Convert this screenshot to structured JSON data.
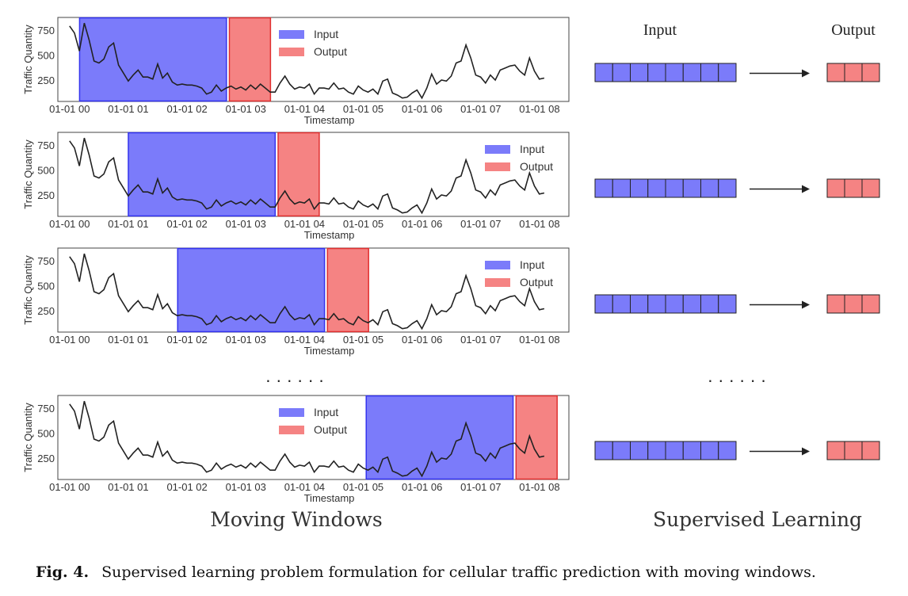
{
  "colors": {
    "input": "#7b7bfa",
    "input_edge": "#3333ee",
    "output": "#f58383",
    "output_edge": "#e03030",
    "line": "#222222",
    "frame": "#444444"
  },
  "right_panel": {
    "input_header": "Input",
    "output_header": "Output",
    "title": "Supervised Learning",
    "input_cells": 8,
    "output_cells": 3,
    "ellipsis": "· · · · · ·"
  },
  "left_panel": {
    "title": "Moving Windows",
    "ellipsis": "· · · · · ·"
  },
  "caption": {
    "label": "Fig. 4.",
    "text": "Supervised learning problem formulation for cellular traffic prediction with moving windows."
  },
  "chart_data": [
    {
      "type": "line",
      "xlabel": "Timestamp",
      "ylabel": "Traffic Quantity",
      "xticks": [
        "01-01 00",
        "01-01 01",
        "01-01 02",
        "01-01 03",
        "01-01 04",
        "01-01 05",
        "01-01 06",
        "01-01 07",
        "01-01 08"
      ],
      "yticks": [
        250,
        500,
        750
      ],
      "ylim": [
        60,
        860
      ],
      "x_range_hours": [
        -0.2,
        8.5
      ],
      "legend": [
        "Input",
        "Output"
      ],
      "legend_position": "top-center",
      "input_window_hours": [
        0.17,
        2.67
      ],
      "output_window_hours": [
        2.72,
        3.42
      ],
      "series": [
        {
          "x_step_hours": 0.0833,
          "values": [
            790,
            720,
            540,
            820,
            650,
            440,
            420,
            460,
            580,
            620,
            400,
            320,
            240,
            300,
            350,
            280,
            280,
            260,
            410,
            270,
            320,
            230,
            200,
            210,
            200,
            200,
            190,
            170,
            110,
            130,
            200,
            140,
            170,
            190,
            160,
            180,
            150,
            200,
            160,
            210,
            170,
            130,
            130,
            220,
            290,
            210,
            160,
            180,
            170,
            210,
            110,
            170,
            170,
            160,
            220,
            160,
            170,
            130,
            110,
            190,
            150,
            130,
            160,
            110,
            240,
            260,
            120,
            100,
            70,
            80,
            120,
            150,
            70,
            170,
            310,
            210,
            250,
            240,
            290,
            420,
            440,
            600,
            470,
            300,
            280,
            220,
            300,
            250,
            350,
            370,
            390,
            400,
            340,
            300,
            470,
            340,
            260,
            270
          ]
        }
      ]
    },
    {
      "type": "line",
      "xlabel": "Timestamp",
      "ylabel": "Traffic Quantity",
      "xticks": [
        "01-01 00",
        "01-01 01",
        "01-01 02",
        "01-01 03",
        "01-01 04",
        "01-01 05",
        "01-01 06",
        "01-01 07",
        "01-01 08"
      ],
      "yticks": [
        250,
        500,
        750
      ],
      "ylim": [
        60,
        860
      ],
      "x_range_hours": [
        -0.2,
        8.5
      ],
      "legend": [
        "Input",
        "Output"
      ],
      "legend_position": "top-right",
      "input_window_hours": [
        1.0,
        3.5
      ],
      "output_window_hours": [
        3.55,
        4.25
      ],
      "series": [
        {
          "x_step_hours": 0.0833,
          "same_as_panel": 0
        }
      ]
    },
    {
      "type": "line",
      "xlabel": "Timestamp",
      "ylabel": "Traffic Quantity",
      "xticks": [
        "01-01 00",
        "01-01 01",
        "01-01 02",
        "01-01 03",
        "01-01 04",
        "01-01 05",
        "01-01 06",
        "01-01 07",
        "01-01 08"
      ],
      "yticks": [
        250,
        500,
        750
      ],
      "ylim": [
        60,
        860
      ],
      "x_range_hours": [
        -0.2,
        8.5
      ],
      "legend": [
        "Input",
        "Output"
      ],
      "legend_position": "top-right",
      "input_window_hours": [
        1.84,
        4.34
      ],
      "output_window_hours": [
        4.39,
        5.09
      ],
      "series": [
        {
          "x_step_hours": 0.0833,
          "same_as_panel": 0
        }
      ]
    },
    {
      "type": "line",
      "xlabel": "Timestamp",
      "ylabel": "Traffic Quantity",
      "xticks": [
        "01-01 00",
        "01-01 01",
        "01-01 02",
        "01-01 03",
        "01-01 04",
        "01-01 05",
        "01-01 06",
        "01-01 07",
        "01-01 08"
      ],
      "yticks": [
        250,
        500,
        750
      ],
      "ylim": [
        60,
        860
      ],
      "x_range_hours": [
        -0.2,
        8.5
      ],
      "legend": [
        "Input",
        "Output"
      ],
      "legend_position": "top-center",
      "input_window_hours": [
        5.05,
        7.55
      ],
      "output_window_hours": [
        7.6,
        8.3
      ],
      "series": [
        {
          "x_step_hours": 0.0833,
          "same_as_panel": 0
        }
      ]
    }
  ]
}
